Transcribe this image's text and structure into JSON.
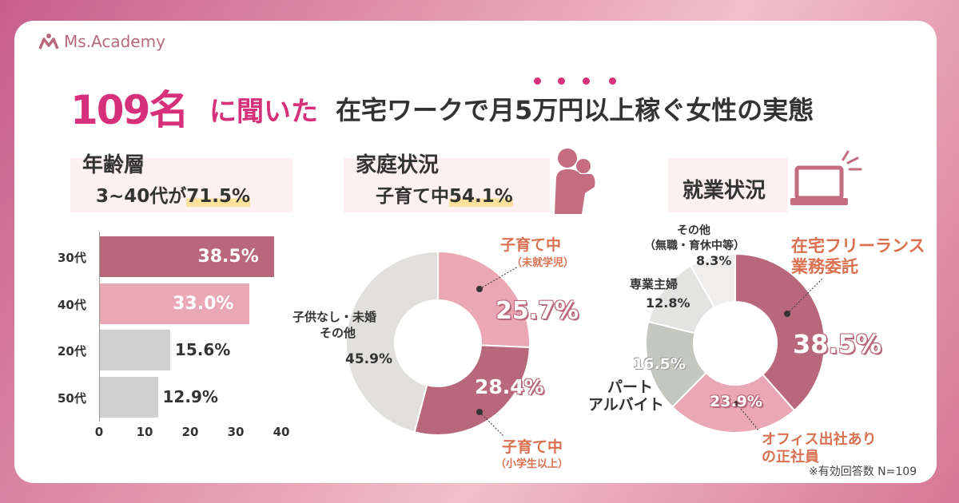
{
  "brand": "Ms.Academy",
  "title": {
    "count": "109名",
    "mid": "に聞いた",
    "rest": "在宅ワークで月5万円以上稼ぐ女性の実態"
  },
  "colors": {
    "accent": "#d6307a",
    "rose": "#b8687a",
    "pink": "#eaa8b4",
    "grey": "#d0d0d0",
    "orange": "#d9704f"
  },
  "sections": {
    "age": {
      "heading": "年齢層",
      "sub_pre": "3~40代が",
      "sub_hl": "71.5%"
    },
    "family": {
      "heading": "家庭状況",
      "sub_pre": "子育て中",
      "sub_hl": "54.1%"
    },
    "work": {
      "heading": "就業状況"
    }
  },
  "footnote": "※有効回答数 N=109",
  "chart_data": [
    {
      "type": "bar",
      "orientation": "horizontal",
      "categories": [
        "30代",
        "40代",
        "20代",
        "50代"
      ],
      "values": [
        38.5,
        33.0,
        15.6,
        12.9
      ],
      "labels": [
        "38.5%",
        "33.0%",
        "15.6%",
        "12.9%"
      ],
      "xticks": [
        "0",
        "10",
        "20",
        "30",
        "40"
      ],
      "xlim": [
        0,
        40
      ],
      "colors": [
        "#b8687a",
        "#eaa8b4",
        "#d0d0d0",
        "#d0d0d0"
      ]
    },
    {
      "type": "pie",
      "donut": true,
      "slices": [
        {
          "label": "子育て中",
          "note": "（未就学児）",
          "value": 25.7,
          "text": "25.7%",
          "color": "#eaa8b4"
        },
        {
          "label": "子育て中",
          "note": "（小学生以上）",
          "value": 28.4,
          "text": "28.4%",
          "color": "#b8687a"
        },
        {
          "label": "子供なし・未婚",
          "note": "その他",
          "value": 45.9,
          "text": "45.9%",
          "color": "#e2e0dd"
        }
      ]
    },
    {
      "type": "pie",
      "donut": true,
      "slices": [
        {
          "label": "在宅フリーランス",
          "note": "業務委託",
          "value": 38.5,
          "text": "38.5%",
          "color": "#b8687a"
        },
        {
          "label": "オフィス出社あり",
          "note": "の正社員",
          "value": 23.9,
          "text": "23.9%",
          "color": "#eaa8b4"
        },
        {
          "label": "パート",
          "note": "アルバイト",
          "value": 16.5,
          "text": "16.5%",
          "color": "#c3c7c0"
        },
        {
          "label": "専業主婦",
          "value": 12.8,
          "text": "12.8%",
          "color": "#e3e3e1"
        },
        {
          "label": "その他",
          "note": "（無職・育休中等）",
          "value": 8.3,
          "text": "8.3%",
          "color": "#f0eeec"
        }
      ]
    }
  ]
}
